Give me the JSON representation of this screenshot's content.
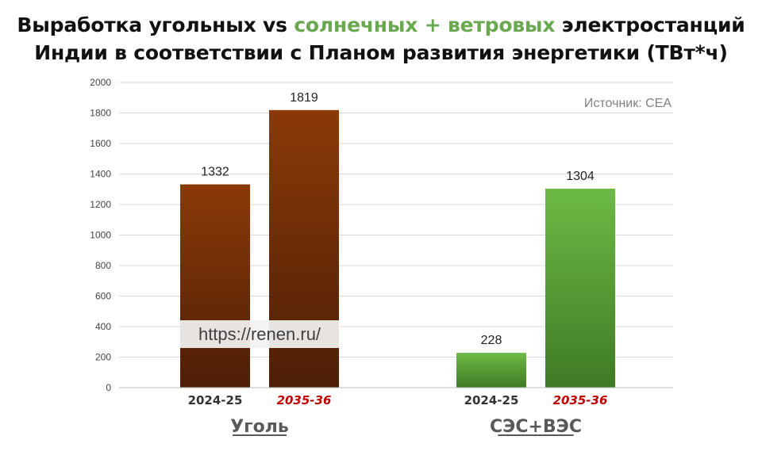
{
  "title": {
    "line1_before": "Выработка угольных vs ",
    "line1_highlight": "солнечных + ветровых",
    "line1_after": " электростанций",
    "line2": "Индии в соответствии с Планом развития энергетики (ТВт*ч)",
    "highlight_color": "#6aa84f"
  },
  "source": "Источник: CEA",
  "watermark": "https://renen.ru/",
  "chart_data": {
    "type": "bar",
    "ylim": [
      0,
      2000
    ],
    "yticks": [
      0,
      200,
      400,
      600,
      800,
      1000,
      1200,
      1400,
      1600,
      1800,
      2000
    ],
    "grid": true,
    "groups": [
      {
        "name": "Уголь",
        "color_top": "#8b3a07",
        "color_bottom": "#4d1e06",
        "bars": [
          {
            "category": "2024-25",
            "value": 1332,
            "label_color": "#333333"
          },
          {
            "category": "2035-36",
            "value": 1819,
            "label_color": "#c00000"
          }
        ]
      },
      {
        "name": "СЭС+ВЭС",
        "color_top": "#6dba45",
        "color_bottom": "#3f7a26",
        "bars": [
          {
            "category": "2024-25",
            "value": 228,
            "label_color": "#333333"
          },
          {
            "category": "2035-36",
            "value": 1304,
            "label_color": "#c00000"
          }
        ]
      }
    ]
  }
}
